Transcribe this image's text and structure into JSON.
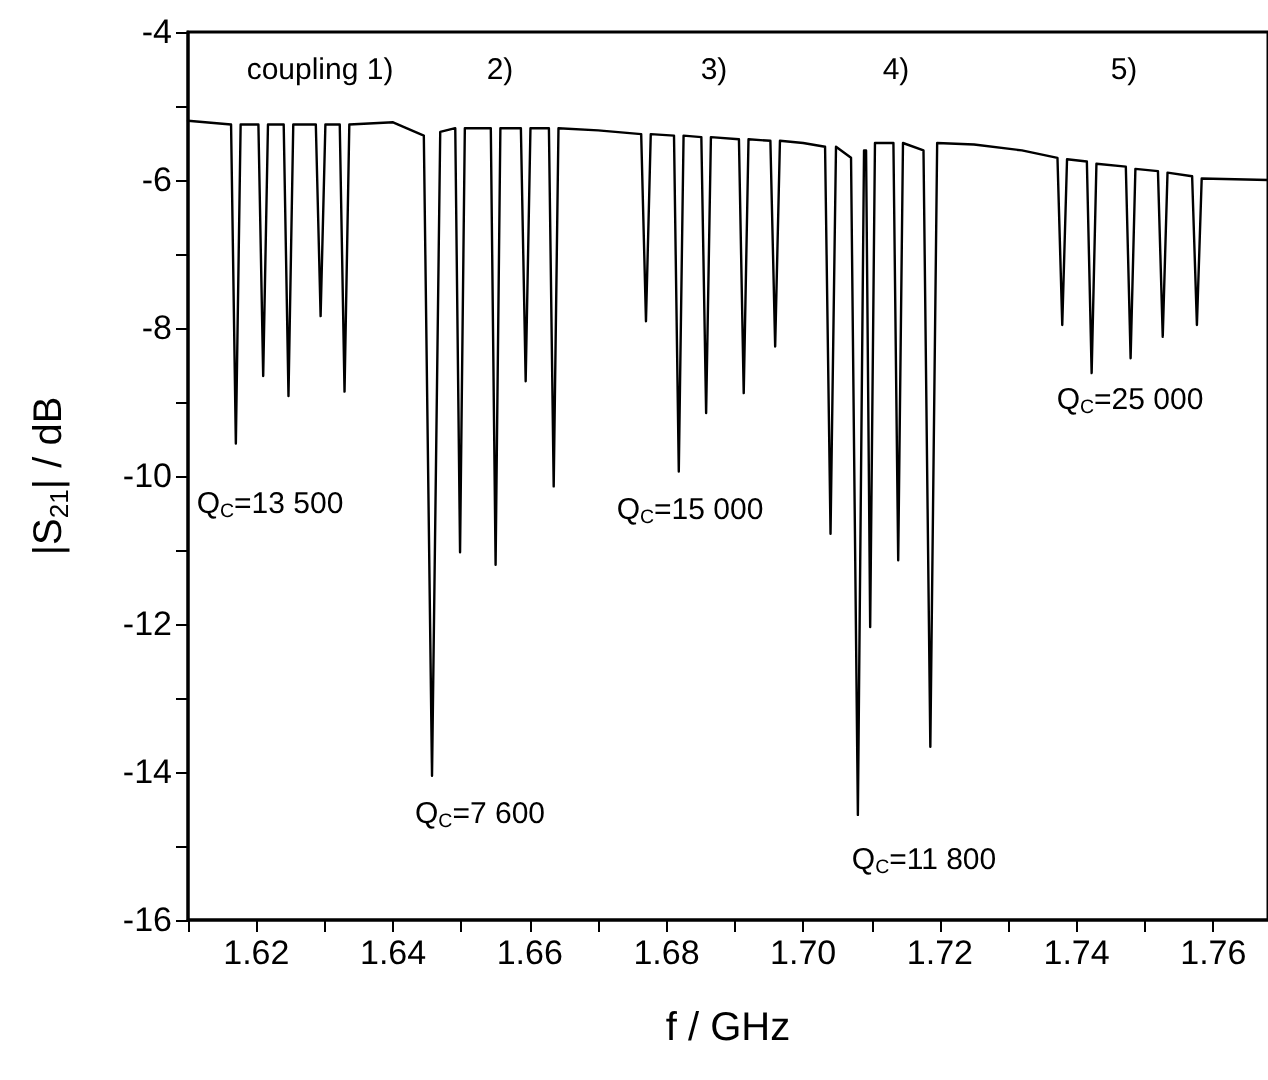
{
  "chart_data": {
    "type": "line",
    "xlabel": "f / GHz",
    "ylabel": "|S$_{21}$| / dB",
    "xlim": [
      1.61,
      1.768
    ],
    "ylim": [
      -16,
      -4
    ],
    "xticks": [
      {
        "value": 1.61,
        "label": null
      },
      1.62,
      {
        "value": 1.63,
        "label": null
      },
      1.64,
      {
        "value": 1.65,
        "label": null
      },
      1.66,
      {
        "value": 1.67,
        "label": null
      },
      1.68,
      {
        "value": 1.69,
        "label": null
      },
      {
        "value": 1.7,
        "label": "1.70"
      },
      {
        "value": 1.71,
        "label": null
      },
      1.72,
      {
        "value": 1.73,
        "label": null
      },
      1.74,
      {
        "value": 1.75,
        "label": null
      },
      1.76
    ],
    "yticks": [
      -16,
      {
        "value": -15,
        "label": null
      },
      -14,
      {
        "value": -13,
        "label": null
      },
      -12,
      {
        "value": -11,
        "label": null
      },
      -10,
      {
        "value": -9,
        "label": null
      },
      -8,
      {
        "value": -7,
        "label": null
      },
      -6,
      {
        "value": -5,
        "label": null
      },
      -4
    ],
    "grid": false,
    "marker": "none",
    "line_style": "solid",
    "series": [
      {
        "color": "#000000",
        "x": [
          1.61,
          1.6163,
          1.617,
          1.6177,
          1.6203,
          1.621,
          1.6217,
          1.624,
          1.6247,
          1.6254,
          1.6287,
          1.6294,
          1.6301,
          1.6322,
          1.6329,
          1.6336,
          1.64,
          1.6445,
          1.6457,
          1.6469,
          1.6491,
          1.6498,
          1.6505,
          1.6543,
          1.655,
          1.6557,
          1.6587,
          1.6594,
          1.6601,
          1.6628,
          1.6635,
          1.6642,
          1.67,
          1.6763,
          1.677,
          1.6777,
          1.6811,
          1.6818,
          1.6825,
          1.6851,
          1.6858,
          1.6865,
          1.6906,
          1.6913,
          1.692,
          1.6952,
          1.6959,
          1.6966,
          1.7,
          1.7032,
          1.704,
          1.7048,
          1.707,
          1.708,
          1.7089,
          1.7092,
          1.7098,
          1.7105,
          1.7132,
          1.7139,
          1.7146,
          1.7176,
          1.7186,
          1.7196,
          1.725,
          1.732,
          1.7372,
          1.7379,
          1.7386,
          1.7415,
          1.7422,
          1.7429,
          1.7472,
          1.7479,
          1.7486,
          1.7519,
          1.7526,
          1.7533,
          1.7569,
          1.7576,
          1.7583,
          1.768
        ],
        "values": [
          -5.2,
          -5.25,
          -9.56,
          -5.25,
          -5.25,
          -8.65,
          -5.25,
          -5.25,
          -8.92,
          -5.25,
          -5.25,
          -7.84,
          -5.25,
          -5.25,
          -8.86,
          -5.25,
          -5.22,
          -5.4,
          -14.05,
          -5.35,
          -5.3,
          -11.03,
          -5.3,
          -5.3,
          -11.2,
          -5.3,
          -5.3,
          -8.72,
          -5.3,
          -5.3,
          -10.14,
          -5.3,
          -5.33,
          -5.38,
          -7.91,
          -5.38,
          -5.4,
          -9.94,
          -5.4,
          -5.42,
          -9.15,
          -5.42,
          -5.45,
          -8.88,
          -5.45,
          -5.47,
          -8.25,
          -5.47,
          -5.5,
          -5.55,
          -10.78,
          -5.55,
          -5.7,
          -14.58,
          -5.6,
          -5.6,
          -12.04,
          -5.5,
          -5.5,
          -11.14,
          -5.5,
          -5.6,
          -13.66,
          -5.5,
          -5.52,
          -5.6,
          -5.7,
          -7.96,
          -5.72,
          -5.75,
          -8.61,
          -5.78,
          -5.82,
          -8.41,
          -5.85,
          -5.88,
          -8.12,
          -5.9,
          -5.95,
          -7.96,
          -5.98,
          -6.0
        ]
      }
    ],
    "annotations": [
      "coupling 1)",
      "2)",
      "3)",
      "4)",
      "5)",
      "Q$_{C}$=13 500",
      "Q$_{C}$=7 600",
      "Q$_{C}$=15 000",
      "Q$_{C}$=11 800",
      "Q$_{C}$=25 000"
    ]
  }
}
